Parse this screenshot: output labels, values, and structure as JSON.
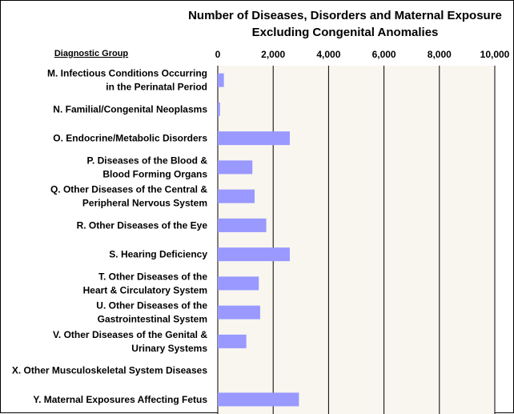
{
  "chart_data": {
    "type": "bar",
    "orientation": "horizontal",
    "title": "Number of Diseases, Disorders and Maternal Exposure",
    "subtitle": "Excluding Congenital Anomalies",
    "axis_group_label": "Diagnostic Group",
    "xlim": [
      0,
      10000
    ],
    "xticks": [
      "0",
      "2,000",
      "4,000",
      "6,000",
      "8,000",
      "10,000"
    ],
    "grid": true,
    "categories": [
      [
        "M. Infectious Conditions Occurring",
        "in the Perinatal Period"
      ],
      [
        "N. Familial/Congenital Neoplasms"
      ],
      [
        "O. Endocrine/Metabolic Disorders"
      ],
      [
        "P. Diseases of the Blood &",
        "Blood Forming Organs"
      ],
      [
        "Q. Other Diseases of the Central &",
        "Peripheral Nervous System"
      ],
      [
        "R. Other Diseases of the Eye"
      ],
      [
        "S. Hearing Deficiency"
      ],
      [
        "T. Other Diseases of the",
        "Heart & Circulatory System"
      ],
      [
        "U. Other Diseases of the",
        "Gastrointestinal System"
      ],
      [
        "V. Other Diseases of the Genital &",
        "Urinary Systems"
      ],
      [
        "X. Other Musculoskeletal System Diseases"
      ],
      [
        "Y. Maternal Exposures Affecting Fetus"
      ]
    ],
    "values": [
      220,
      80,
      2600,
      1250,
      1330,
      1750,
      2600,
      1480,
      1530,
      1030,
      0,
      2930
    ],
    "colors": {
      "bar": "#9999ff",
      "plot_background": "#f8f6ef",
      "grid": "#000000"
    }
  }
}
